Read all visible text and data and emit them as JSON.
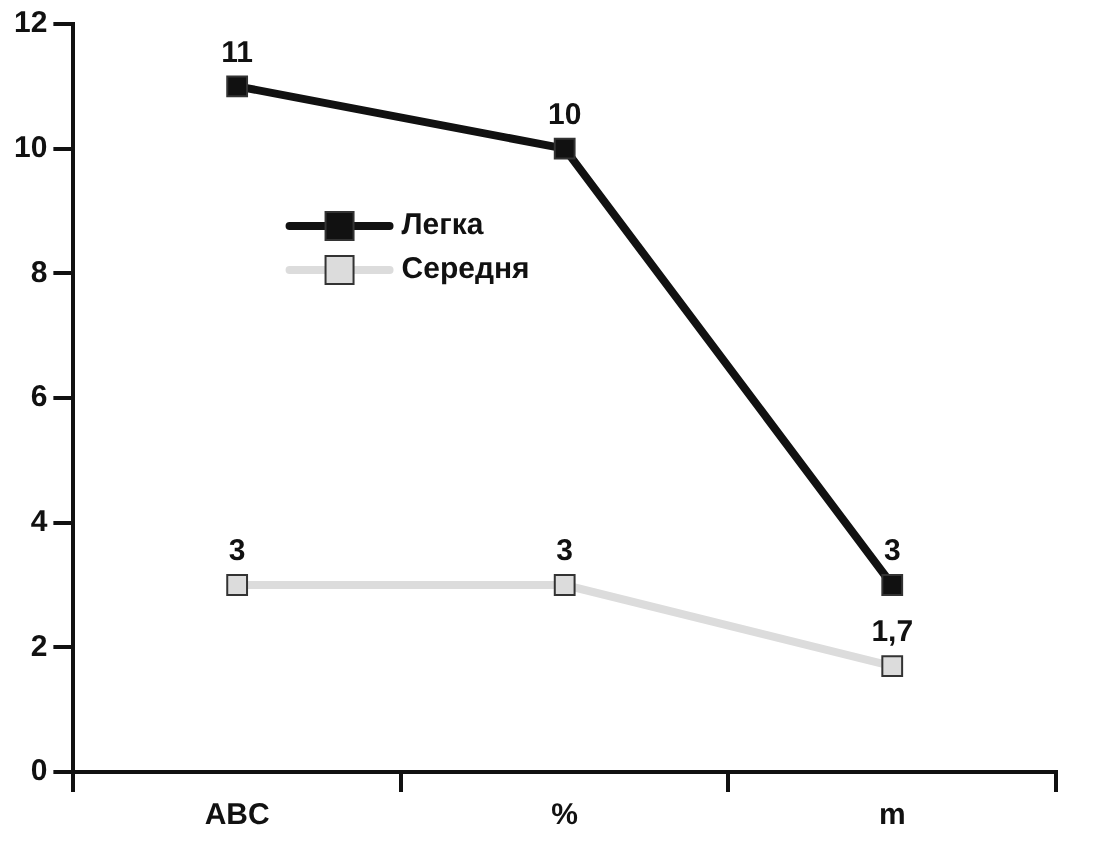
{
  "chart_data": {
    "type": "line",
    "categories": [
      "ABC",
      "%",
      "m"
    ],
    "series": [
      {
        "name": "Легка",
        "color": "#111111",
        "values": [
          11,
          10,
          3
        ],
        "value_labels": [
          "11",
          "10",
          "3"
        ]
      },
      {
        "name": "Середня",
        "color": "#dcdcdc",
        "values": [
          3,
          3,
          1.7
        ],
        "value_labels": [
          "3",
          "3",
          "1,7"
        ]
      }
    ],
    "ylim": [
      0,
      12
    ],
    "yticks": [
      0,
      2,
      4,
      6,
      8,
      10,
      12
    ],
    "grid": false,
    "legend": "top",
    "marker": "square",
    "line_style": "solid"
  }
}
